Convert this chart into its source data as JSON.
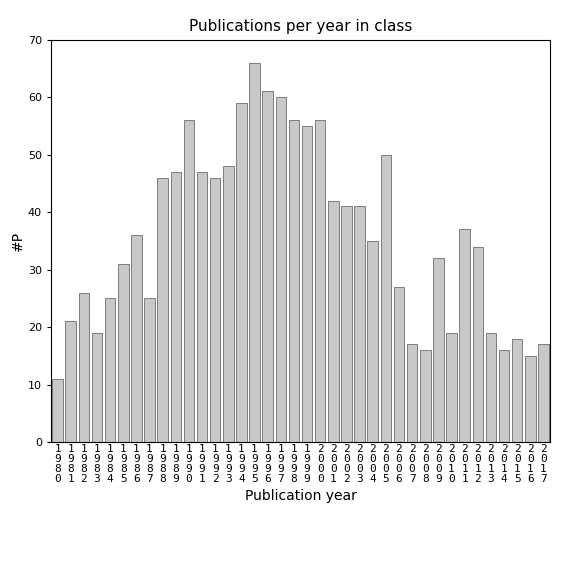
{
  "title": "Publications per year in class",
  "xlabel": "Publication year",
  "ylabel": "#P",
  "bar_color": "#c8c8c8",
  "edge_color": "#555555",
  "years": [
    1980,
    1981,
    1982,
    1983,
    1984,
    1985,
    1986,
    1987,
    1988,
    1989,
    1990,
    1991,
    1992,
    1993,
    1994,
    1995,
    1996,
    1997,
    1998,
    1999,
    2000,
    2001,
    2002,
    2003,
    2004,
    2005,
    2006,
    2007,
    2008,
    2009,
    2010,
    2011,
    2012,
    2013,
    2014,
    2015,
    2016,
    2017
  ],
  "values": [
    11,
    21,
    26,
    19,
    25,
    31,
    36,
    25,
    46,
    47,
    56,
    47,
    46,
    48,
    59,
    66,
    61,
    60,
    56,
    55,
    56,
    42,
    41,
    41,
    35,
    50,
    27,
    17,
    16,
    32,
    19,
    37,
    34,
    19,
    16,
    18,
    15,
    17
  ],
  "ylim": [
    0,
    70
  ],
  "yticks": [
    0,
    10,
    20,
    30,
    40,
    50,
    60,
    70
  ],
  "title_fontsize": 11,
  "label_fontsize": 10,
  "tick_fontsize": 8,
  "figsize": [
    5.67,
    5.67
  ],
  "dpi": 100
}
